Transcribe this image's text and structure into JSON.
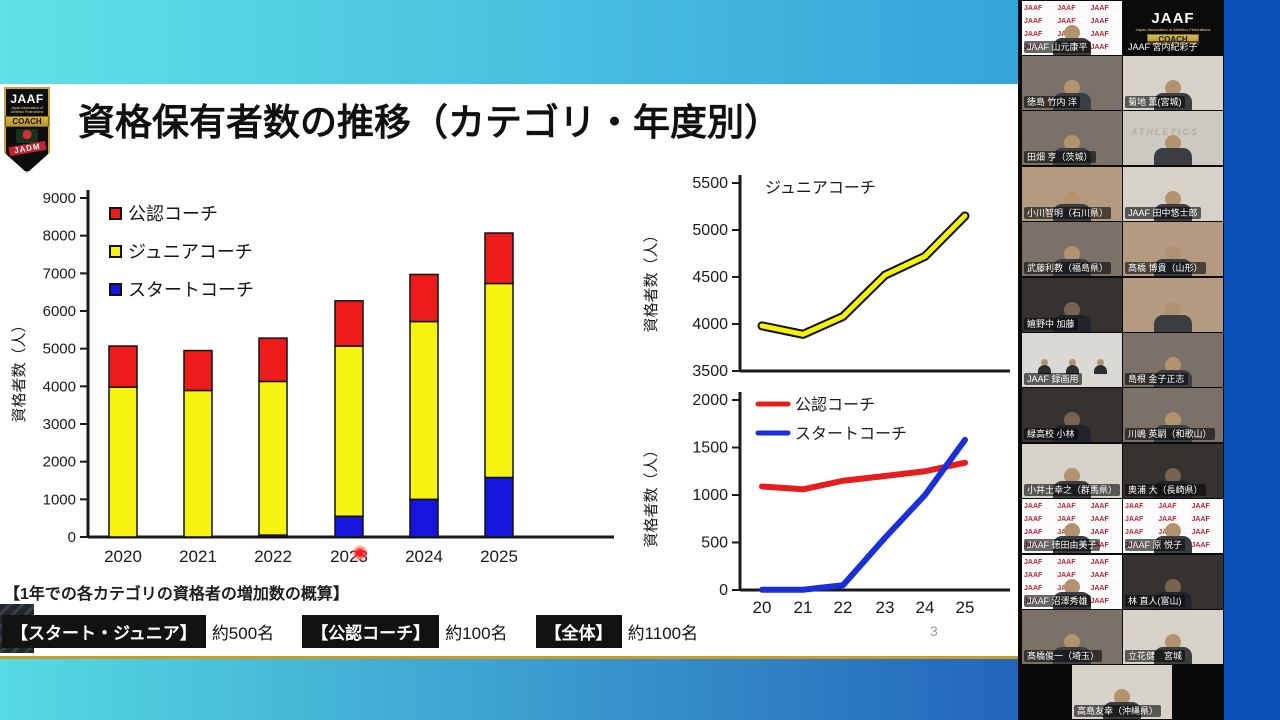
{
  "slide": {
    "title": "資格保有者数の推移（カテゴリ・年度別）",
    "page_number": "3",
    "logo": {
      "jaaf": "JAAF",
      "sub": "Japan Association of Athletics Federations",
      "coach": "COACH",
      "jadm": "JADM"
    },
    "summary": {
      "heading": "【1年での各カテゴリの資格者の増加数の概算】",
      "items": [
        {
          "label": "【スタート・ジュニア】",
          "value": "約500名"
        },
        {
          "label": "【公認コーチ】",
          "value": "約100名"
        },
        {
          "label": "【全体】",
          "value": "約1100名"
        }
      ]
    }
  },
  "chart_data": [
    {
      "id": "category-year-stacked-bar",
      "type": "bar",
      "stacked": true,
      "title": "",
      "categories": [
        "2020",
        "2021",
        "2022",
        "2023",
        "2024",
        "2025"
      ],
      "series": [
        {
          "name": "スタートコーチ",
          "color": "#1515dd",
          "values": [
            0,
            0,
            50,
            550,
            1000,
            1580
          ]
        },
        {
          "name": "ジュニアコーチ",
          "color": "#f6f310",
          "values": [
            3980,
            3890,
            4080,
            4520,
            4720,
            5150
          ]
        },
        {
          "name": "公認コーチ",
          "color": "#ee1b1b",
          "values": [
            1090,
            1060,
            1150,
            1200,
            1250,
            1340
          ]
        }
      ],
      "legend": [
        {
          "label": "公認コーチ",
          "color": "#ee1b1b"
        },
        {
          "label": "ジュニアコーチ",
          "color": "#f6f310"
        },
        {
          "label": "スタートコーチ",
          "color": "#1515dd"
        }
      ],
      "xlabel": "",
      "ylabel": "資格者数（人）",
      "ylim": [
        0,
        9000
      ],
      "ytick": 1000,
      "grid": false
    },
    {
      "id": "junior-coach-line",
      "type": "line",
      "title": "ジュニアコーチ",
      "x": [
        "20",
        "21",
        "22",
        "23",
        "24",
        "25"
      ],
      "x_labels_shown": false,
      "series": [
        {
          "name": "ジュニアコーチ",
          "color": "#f6f300",
          "outline": "#111111",
          "values": [
            3980,
            3890,
            4080,
            4520,
            4720,
            5150
          ]
        }
      ],
      "ylabel": "資格者数（人）",
      "ylim": [
        3500,
        5500
      ],
      "ytick": 500,
      "grid": false
    },
    {
      "id": "official-start-line",
      "type": "line",
      "title": "",
      "x": [
        "20",
        "21",
        "22",
        "23",
        "24",
        "25"
      ],
      "x_labels_shown": true,
      "series": [
        {
          "name": "公認コーチ",
          "color": "#e81c1c",
          "values": [
            1090,
            1060,
            1150,
            1200,
            1250,
            1340
          ]
        },
        {
          "name": "スタートコーチ",
          "color": "#1a2fd8",
          "values": [
            0,
            0,
            50,
            550,
            1000,
            1580
          ]
        }
      ],
      "ylabel": "資格者数（人）",
      "ylim": [
        0,
        2000
      ],
      "ytick": 500,
      "legend_position": "top-left",
      "grid": false
    }
  ],
  "participants": {
    "pattern_text": "JAAF JAAF JAAF JAAF JAAF JAAF JAAF JAAF JAAF JAAF JAAF JAAF JAAF JAAF JAAF",
    "logo_tile": {
      "jaaf": "JAAF",
      "sub": "Japan Association of Athletics Federations",
      "coach": "COACH"
    },
    "tiles": [
      {
        "row": 1,
        "col": "L",
        "name": "JAAF 山元康平",
        "variant": "jaaf",
        "red_border": true
      },
      {
        "row": 1,
        "col": "R",
        "name": "JAAF 宮内紀彩子",
        "variant": "logo",
        "red_border": false
      },
      {
        "row": 2,
        "col": "L",
        "name": "徳島 竹内 洋",
        "variant": "room-dim",
        "red_border": false
      },
      {
        "row": 2,
        "col": "R",
        "name": "菊地 薫(宮城)",
        "variant": "room-bright",
        "red_border": false
      },
      {
        "row": 3,
        "col": "L",
        "name": "田畑 亨（茨城）",
        "variant": "room-dim",
        "red_border": false
      },
      {
        "row": 3,
        "col": "R",
        "name": "",
        "variant": "office",
        "red_border": false,
        "watermark": "ATHLETICS"
      },
      {
        "row": 4,
        "col": "L",
        "name": "小川智明（石川県）",
        "variant": "room-warm",
        "red_border": false
      },
      {
        "row": 4,
        "col": "R",
        "name": "JAAF 田中悠士郎",
        "variant": "room-bright",
        "red_border": false
      },
      {
        "row": 5,
        "col": "L",
        "name": "武藤利教（福島県）",
        "variant": "room-dim",
        "red_border": false
      },
      {
        "row": 5,
        "col": "R",
        "name": "髙橋 博貴（山形）",
        "variant": "room-warm",
        "red_border": false
      },
      {
        "row": 6,
        "col": "L",
        "name": "嬉野中 加藤",
        "variant": "room-dark",
        "red_border": false
      },
      {
        "row": 6,
        "col": "R",
        "name": "",
        "variant": "room-warm",
        "red_border": false
      },
      {
        "row": 7,
        "col": "L",
        "name": "JAAF 録画用",
        "variant": "group",
        "red_border": false
      },
      {
        "row": 7,
        "col": "R",
        "name": "島根 金子正志",
        "variant": "room-dim",
        "red_border": false
      },
      {
        "row": 8,
        "col": "L",
        "name": "緑高校 小林",
        "variant": "room-dark",
        "red_border": false
      },
      {
        "row": 8,
        "col": "R",
        "name": "川嶋 英嗣（和歌山）",
        "variant": "room-dim",
        "red_border": false
      },
      {
        "row": 9,
        "col": "L",
        "name": "小井土幸之（群馬県）",
        "variant": "room-bright",
        "red_border": false
      },
      {
        "row": 9,
        "col": "R",
        "name": "奥浦 大（長崎県）",
        "variant": "room-dark",
        "red_border": false
      },
      {
        "row": 10,
        "col": "L",
        "name": "JAAF 徳田由美子",
        "variant": "jaaf",
        "red_border": true
      },
      {
        "row": 10,
        "col": "R",
        "name": "JAAF 原 悦子",
        "variant": "jaaf",
        "red_border": true
      },
      {
        "row": 11,
        "col": "L",
        "name": "JAAF 沼澤秀雄",
        "variant": "jaaf",
        "red_border": true
      },
      {
        "row": 11,
        "col": "R",
        "name": "林 直人(富山)",
        "variant": "room-dark",
        "red_border": false
      },
      {
        "row": 12,
        "col": "L",
        "name": "髙橋俊一（埼玉）",
        "variant": "room-dim",
        "red_border": false
      },
      {
        "row": 12,
        "col": "R",
        "name": "立花健　宮城",
        "variant": "room-bright",
        "red_border": false
      },
      {
        "row": 13,
        "col": "C",
        "name": "高島友幸（沖縄県）",
        "variant": "room-bright",
        "red_border": false
      }
    ]
  },
  "colors": {
    "zoom_background": "#0a50b6",
    "active_speaker_border": "#e03c3c",
    "slide_top_band_left": "#5fe1e6",
    "slide_top_band_right": "#35a3da",
    "gold_rule": "#c79a2e"
  }
}
